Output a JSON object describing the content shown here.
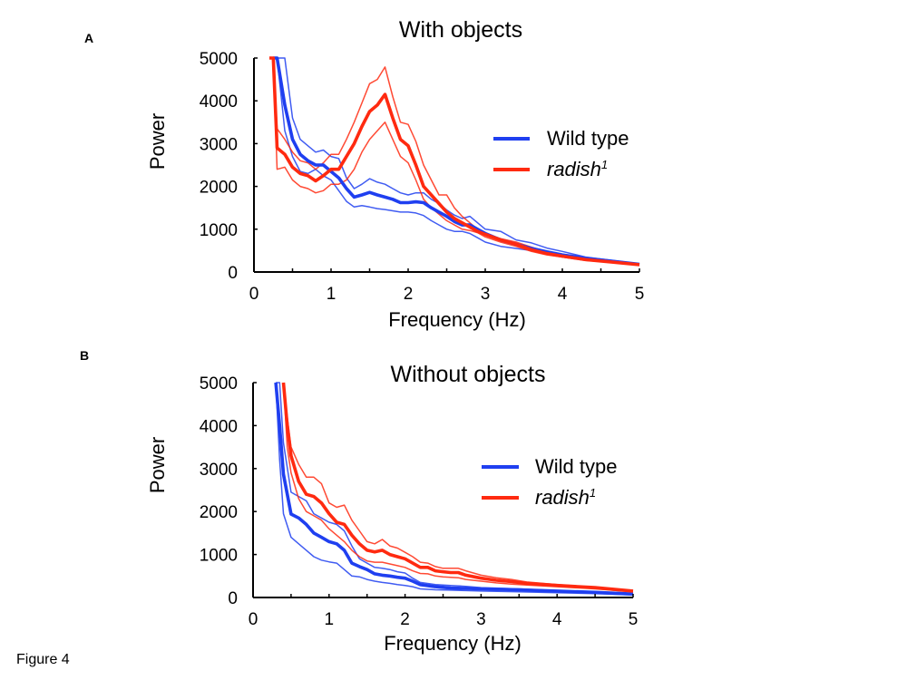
{
  "figure": {
    "caption": "Figure 4"
  },
  "colors": {
    "wild_type": "#1f3ff0",
    "radish": "#ff2a10",
    "axis": "#000000"
  },
  "chart_data": [
    {
      "type": "line",
      "panel": "A",
      "title": "With objects",
      "xlabel": "Frequency (Hz)",
      "ylabel": "Power",
      "xlim": [
        0,
        5
      ],
      "ylim": [
        0,
        5000
      ],
      "xticks": [
        0,
        1,
        2,
        3,
        4,
        5
      ],
      "xticks_minor_step": 0.5,
      "yticks": [
        0,
        1000,
        2000,
        3000,
        4000,
        5000
      ],
      "grid": false,
      "legend": {
        "placement": "right",
        "entries": [
          {
            "label": "Wild type",
            "series": "wild_type",
            "italic": false
          },
          {
            "label": "radish",
            "superscript": "1",
            "series": "radish",
            "italic": true
          }
        ]
      },
      "series": [
        {
          "name": "Wild type",
          "key": "wild_type",
          "role": "mean",
          "x": [
            0.25,
            0.3,
            0.4,
            0.5,
            0.6,
            0.7,
            0.8,
            0.9,
            1.0,
            1.1,
            1.2,
            1.3,
            1.4,
            1.5,
            1.6,
            1.7,
            1.8,
            1.9,
            2.0,
            2.1,
            2.2,
            2.3,
            2.4,
            2.5,
            2.6,
            2.7,
            2.8,
            2.9,
            3.0,
            3.2,
            3.4,
            3.6,
            3.8,
            4.0,
            4.3,
            4.6,
            5.0
          ],
          "y": [
            5000,
            5000,
            3900,
            3100,
            2750,
            2600,
            2500,
            2500,
            2350,
            2200,
            1950,
            1750,
            1800,
            1860,
            1800,
            1750,
            1700,
            1620,
            1620,
            1640,
            1620,
            1500,
            1400,
            1300,
            1180,
            1100,
            1100,
            1000,
            900,
            750,
            650,
            550,
            470,
            400,
            320,
            260,
            180
          ]
        },
        {
          "name": "Wild type",
          "key": "wild_type",
          "role": "upper",
          "x": [
            0.3,
            0.4,
            0.5,
            0.6,
            0.7,
            0.8,
            0.9,
            1.0,
            1.1,
            1.2,
            1.3,
            1.4,
            1.5,
            1.6,
            1.7,
            1.8,
            1.9,
            2.0,
            2.1,
            2.2,
            2.3,
            2.4,
            2.5,
            2.6,
            2.7,
            2.8,
            2.9,
            3.0,
            3.2,
            3.4,
            3.6,
            3.8,
            4.0,
            4.3,
            4.6,
            5.0
          ],
          "y": [
            5000,
            5000,
            3600,
            3100,
            2950,
            2800,
            2850,
            2700,
            2650,
            2200,
            1950,
            2050,
            2180,
            2100,
            2050,
            1950,
            1850,
            1800,
            1850,
            1850,
            1700,
            1600,
            1450,
            1330,
            1250,
            1300,
            1150,
            1000,
            950,
            750,
            680,
            560,
            480,
            350,
            280,
            190
          ]
        },
        {
          "name": "Wild type",
          "key": "wild_type",
          "role": "lower",
          "x": [
            0.25,
            0.3,
            0.4,
            0.5,
            0.6,
            0.7,
            0.8,
            0.9,
            1.0,
            1.1,
            1.2,
            1.3,
            1.4,
            1.5,
            1.6,
            1.7,
            1.8,
            1.9,
            2.0,
            2.1,
            2.2,
            2.3,
            2.4,
            2.5,
            2.6,
            2.7,
            2.8,
            2.9,
            3.0,
            3.2,
            3.4,
            3.6,
            3.8,
            4.0,
            4.3,
            4.6,
            5.0
          ],
          "y": [
            5000,
            5000,
            3300,
            2700,
            2350,
            2300,
            2400,
            2250,
            2150,
            1900,
            1650,
            1520,
            1550,
            1520,
            1480,
            1460,
            1430,
            1400,
            1400,
            1380,
            1320,
            1200,
            1100,
            1000,
            950,
            950,
            900,
            800,
            700,
            600,
            550,
            500,
            420,
            350,
            280,
            230,
            170
          ]
        },
        {
          "name": "radish1",
          "key": "radish",
          "role": "mean",
          "x": [
            0.2,
            0.25,
            0.3,
            0.4,
            0.5,
            0.6,
            0.7,
            0.8,
            0.9,
            1.0,
            1.1,
            1.2,
            1.3,
            1.4,
            1.5,
            1.6,
            1.7,
            1.8,
            1.9,
            2.0,
            2.1,
            2.2,
            2.3,
            2.4,
            2.5,
            2.6,
            2.7,
            2.8,
            2.9,
            3.0,
            3.2,
            3.4,
            3.6,
            3.8,
            4.0,
            4.3,
            4.6,
            5.0
          ],
          "y": [
            5000,
            5000,
            2900,
            2750,
            2450,
            2300,
            2250,
            2130,
            2250,
            2400,
            2400,
            2700,
            3000,
            3400,
            3750,
            3900,
            4150,
            3600,
            3100,
            2950,
            2500,
            2000,
            1800,
            1600,
            1400,
            1250,
            1150,
            1050,
            950,
            880,
            750,
            650,
            520,
            430,
            370,
            290,
            240,
            170
          ]
        },
        {
          "name": "radish1",
          "key": "radish",
          "role": "upper",
          "x": [
            0.2,
            0.25,
            0.3,
            0.4,
            0.5,
            0.6,
            0.7,
            0.8,
            0.9,
            1.0,
            1.1,
            1.2,
            1.3,
            1.4,
            1.5,
            1.6,
            1.7,
            1.8,
            1.9,
            2.0,
            2.1,
            2.2,
            2.3,
            2.4,
            2.5,
            2.6,
            2.7,
            2.8,
            2.9,
            3.0,
            3.2,
            3.4,
            3.6,
            3.8,
            4.0,
            4.3,
            4.6,
            5.0
          ],
          "y": [
            5000,
            5000,
            3350,
            3100,
            2800,
            2600,
            2550,
            2400,
            2550,
            2750,
            2750,
            3100,
            3500,
            3950,
            4400,
            4500,
            4790,
            4100,
            3500,
            3450,
            3050,
            2500,
            2150,
            1800,
            1800,
            1500,
            1300,
            1150,
            1000,
            900,
            780,
            700,
            580,
            470,
            400,
            310,
            250,
            180
          ]
        },
        {
          "name": "radish1",
          "key": "radish",
          "role": "lower",
          "x": [
            0.2,
            0.25,
            0.3,
            0.4,
            0.5,
            0.6,
            0.7,
            0.8,
            0.9,
            1.0,
            1.1,
            1.2,
            1.3,
            1.4,
            1.5,
            1.6,
            1.7,
            1.8,
            1.9,
            2.0,
            2.1,
            2.2,
            2.3,
            2.4,
            2.5,
            2.6,
            2.7,
            2.8,
            2.9,
            3.0,
            3.2,
            3.4,
            3.6,
            3.8,
            4.0,
            4.3,
            4.6,
            5.0
          ],
          "y": [
            5000,
            5000,
            2400,
            2450,
            2150,
            2000,
            1950,
            1850,
            1900,
            2050,
            2050,
            2150,
            2400,
            2800,
            3100,
            3300,
            3500,
            3100,
            2700,
            2550,
            2150,
            1700,
            1500,
            1350,
            1200,
            1100,
            1000,
            970,
            920,
            820,
            700,
            600,
            480,
            400,
            350,
            270,
            230,
            160
          ]
        }
      ]
    },
    {
      "type": "line",
      "panel": "B",
      "title": "Without objects",
      "xlabel": "Frequency (Hz)",
      "ylabel": "Power",
      "xlim": [
        0,
        5
      ],
      "ylim": [
        0,
        5000
      ],
      "xticks": [
        0,
        1,
        2,
        3,
        4,
        5
      ],
      "xticks_minor_step": 0.5,
      "yticks": [
        0,
        1000,
        2000,
        3000,
        4000,
        5000
      ],
      "grid": false,
      "legend": {
        "placement": "right",
        "entries": [
          {
            "label": "Wild type",
            "series": "wild_type",
            "italic": false
          },
          {
            "label": "radish",
            "superscript": "1",
            "series": "radish",
            "italic": true
          }
        ]
      },
      "series": [
        {
          "name": "Wild type",
          "key": "wild_type",
          "role": "mean",
          "x": [
            0.3,
            0.35,
            0.4,
            0.5,
            0.6,
            0.7,
            0.8,
            0.9,
            1.0,
            1.1,
            1.2,
            1.3,
            1.4,
            1.5,
            1.6,
            1.7,
            1.8,
            1.9,
            2.0,
            2.1,
            2.2,
            2.4,
            2.6,
            2.8,
            3.0,
            3.5,
            4.0,
            4.5,
            5.0
          ],
          "y": [
            5000,
            4000,
            2870,
            1940,
            1850,
            1700,
            1500,
            1400,
            1300,
            1250,
            1100,
            800,
            720,
            650,
            550,
            520,
            500,
            470,
            450,
            380,
            300,
            250,
            220,
            210,
            200,
            180,
            150,
            120,
            80
          ]
        },
        {
          "name": "Wild type",
          "key": "wild_type",
          "role": "upper",
          "x": [
            0.3,
            0.35,
            0.4,
            0.5,
            0.6,
            0.7,
            0.8,
            0.9,
            1.0,
            1.1,
            1.2,
            1.3,
            1.4,
            1.5,
            1.6,
            1.7,
            1.8,
            1.9,
            2.0,
            2.1,
            2.2,
            2.4,
            2.6,
            2.8,
            3.0,
            3.5,
            4.0,
            4.5,
            5.0
          ],
          "y": [
            5000,
            5000,
            3600,
            2450,
            2350,
            2250,
            1950,
            1850,
            1750,
            1700,
            1550,
            1200,
            900,
            800,
            700,
            680,
            650,
            600,
            570,
            450,
            350,
            300,
            280,
            260,
            230,
            200,
            160,
            130,
            90
          ]
        },
        {
          "name": "Wild type",
          "key": "wild_type",
          "role": "lower",
          "x": [
            0.3,
            0.35,
            0.4,
            0.5,
            0.6,
            0.7,
            0.8,
            0.9,
            1.0,
            1.1,
            1.2,
            1.3,
            1.4,
            1.5,
            1.6,
            1.7,
            1.8,
            1.9,
            2.0,
            2.1,
            2.2,
            2.4,
            2.6,
            2.8,
            3.0,
            3.5,
            4.0,
            4.5,
            5.0
          ],
          "y": [
            5000,
            3200,
            1950,
            1400,
            1250,
            1100,
            950,
            870,
            830,
            800,
            650,
            500,
            480,
            420,
            380,
            350,
            330,
            300,
            280,
            250,
            200,
            180,
            170,
            160,
            150,
            130,
            110,
            90,
            60
          ]
        },
        {
          "name": "radish1",
          "key": "radish",
          "role": "mean",
          "x": [
            0.4,
            0.45,
            0.5,
            0.6,
            0.7,
            0.8,
            0.9,
            1.0,
            1.1,
            1.2,
            1.3,
            1.4,
            1.5,
            1.6,
            1.7,
            1.8,
            1.9,
            2.0,
            2.1,
            2.2,
            2.3,
            2.4,
            2.5,
            2.6,
            2.7,
            2.8,
            3.0,
            3.2,
            3.4,
            3.6,
            4.0,
            4.5,
            5.0
          ],
          "y": [
            5000,
            4000,
            3300,
            2700,
            2400,
            2350,
            2200,
            1950,
            1750,
            1700,
            1450,
            1250,
            1100,
            1060,
            1100,
            1000,
            950,
            900,
            800,
            700,
            700,
            620,
            600,
            580,
            580,
            520,
            450,
            400,
            370,
            330,
            280,
            230,
            150
          ]
        },
        {
          "name": "radish1",
          "key": "radish",
          "role": "upper",
          "x": [
            0.4,
            0.45,
            0.5,
            0.6,
            0.7,
            0.8,
            0.9,
            1.0,
            1.1,
            1.2,
            1.3,
            1.4,
            1.5,
            1.6,
            1.7,
            1.8,
            1.9,
            2.0,
            2.1,
            2.2,
            2.3,
            2.4,
            2.5,
            2.6,
            2.7,
            2.8,
            3.0,
            3.2,
            3.4,
            3.6,
            4.0,
            4.5,
            5.0
          ],
          "y": [
            5000,
            4200,
            3500,
            3100,
            2800,
            2800,
            2650,
            2200,
            2100,
            2150,
            1800,
            1550,
            1300,
            1250,
            1350,
            1200,
            1150,
            1050,
            950,
            820,
            800,
            720,
            680,
            680,
            680,
            620,
            520,
            460,
            420,
            360,
            300,
            240,
            160
          ]
        },
        {
          "name": "radish1",
          "key": "radish",
          "role": "lower",
          "x": [
            0.4,
            0.45,
            0.5,
            0.6,
            0.7,
            0.8,
            0.9,
            1.0,
            1.1,
            1.2,
            1.3,
            1.4,
            1.5,
            1.6,
            1.7,
            1.8,
            1.9,
            2.0,
            2.1,
            2.2,
            2.3,
            2.4,
            2.5,
            2.6,
            2.7,
            2.8,
            3.0,
            3.2,
            3.4,
            3.6,
            4.0,
            4.5,
            5.0
          ],
          "y": [
            5000,
            3500,
            2900,
            2300,
            2000,
            1900,
            1800,
            1600,
            1450,
            1300,
            1100,
            950,
            850,
            820,
            820,
            780,
            740,
            700,
            620,
            560,
            550,
            500,
            480,
            470,
            460,
            420,
            380,
            340,
            310,
            290,
            250,
            200,
            130
          ]
        }
      ]
    }
  ]
}
